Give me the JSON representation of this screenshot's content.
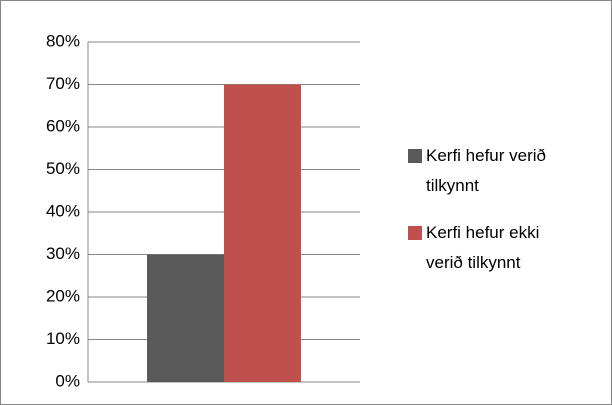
{
  "chart_data": {
    "type": "bar",
    "categories": [
      null
    ],
    "series": [
      {
        "name": "Kerfi hefur verið tilkynnt",
        "color": "#595959",
        "values": [
          30
        ]
      },
      {
        "name": "Kerfi hefur ekki verið tilkynnt",
        "color": "#c0504d",
        "values": [
          70
        ]
      }
    ],
    "ylim": [
      0,
      80
    ],
    "yticks": [
      {
        "value": 0,
        "label": "0%"
      },
      {
        "value": 10,
        "label": "10%"
      },
      {
        "value": 20,
        "label": "20%"
      },
      {
        "value": 30,
        "label": "30%"
      },
      {
        "value": 40,
        "label": "40%"
      },
      {
        "value": 50,
        "label": "50%"
      },
      {
        "value": 60,
        "label": "60%"
      },
      {
        "value": 70,
        "label": "70%"
      },
      {
        "value": 80,
        "label": "80%"
      }
    ],
    "grid": true,
    "legend": "right"
  }
}
